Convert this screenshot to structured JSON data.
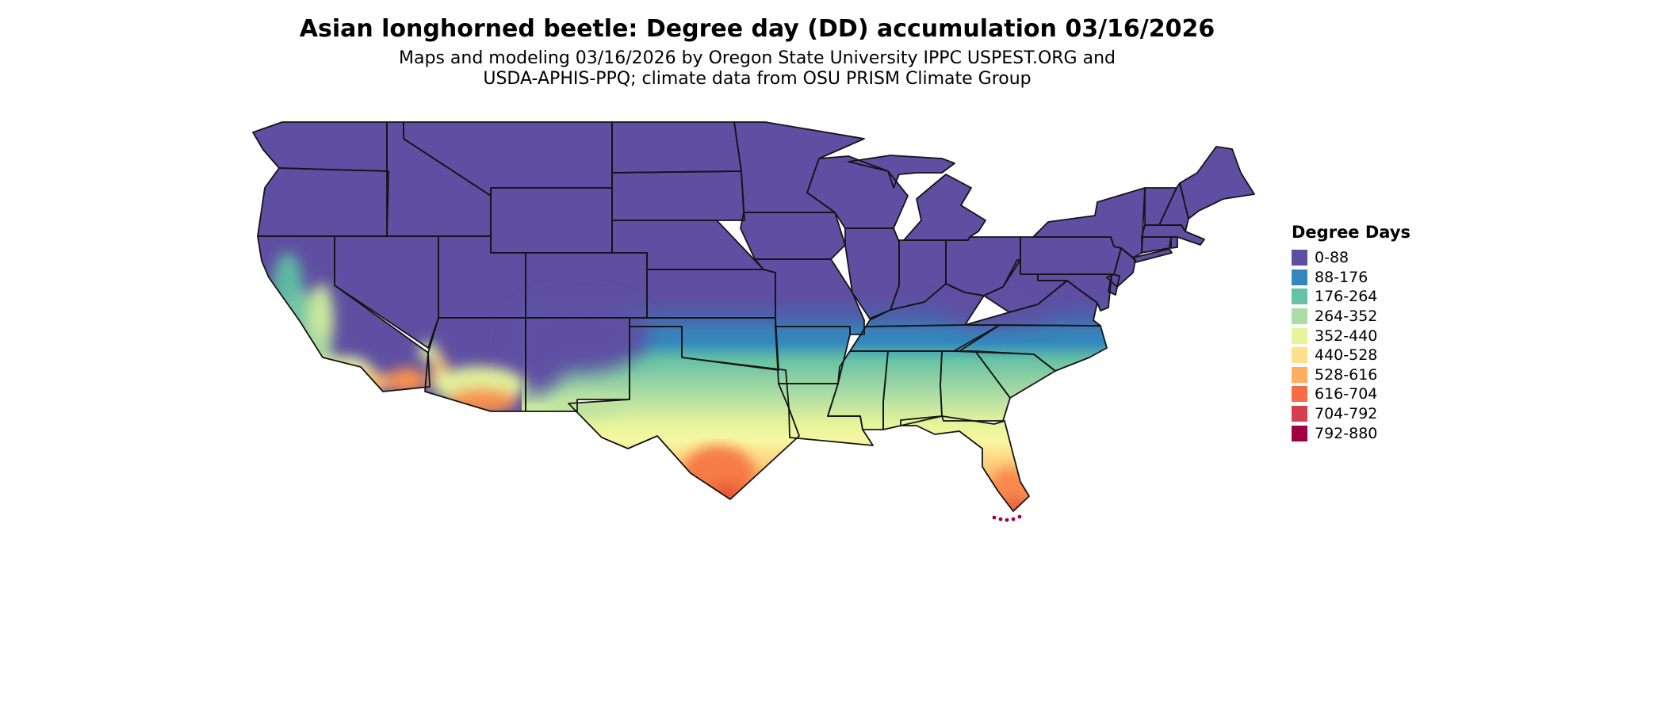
{
  "header": {
    "title": "Asian longhorned beetle: Degree day (DD) accumulation 03/16/2026",
    "subtitle_line1": "Maps and modeling 03/16/2026 by Oregon State University IPPC USPEST.ORG and",
    "subtitle_line2": "USDA-APHIS-PPQ; climate data from OSU PRISM Climate Group"
  },
  "legend": {
    "title": "Degree Days",
    "entries": [
      {
        "label": "0-88",
        "color": "#5e4fa2"
      },
      {
        "label": "88-176",
        "color": "#3288bd"
      },
      {
        "label": "176-264",
        "color": "#66c2a5"
      },
      {
        "label": "264-352",
        "color": "#abdda4"
      },
      {
        "label": "352-440",
        "color": "#e6f598"
      },
      {
        "label": "440-528",
        "color": "#fee08b"
      },
      {
        "label": "528-616",
        "color": "#fdae61"
      },
      {
        "label": "616-704",
        "color": "#f46d43"
      },
      {
        "label": "704-792",
        "color": "#d53e4f"
      },
      {
        "label": "792-880",
        "color": "#9e0142"
      }
    ]
  },
  "map": {
    "region": "Contiguous United States"
  },
  "chart_data": {
    "type": "heatmap",
    "title": "Asian longhorned beetle: Degree day (DD) accumulation 03/16/2026",
    "date_shown": "03/16/2026",
    "legend_title": "Degree Days",
    "unit": "degree days (DD)",
    "classes": [
      {
        "label": "0-88",
        "min": 0,
        "max": 88,
        "color": "#5e4fa2"
      },
      {
        "label": "88-176",
        "min": 88,
        "max": 176,
        "color": "#3288bd"
      },
      {
        "label": "176-264",
        "min": 176,
        "max": 264,
        "color": "#66c2a5"
      },
      {
        "label": "264-352",
        "min": 264,
        "max": 352,
        "color": "#abdda4"
      },
      {
        "label": "352-440",
        "min": 352,
        "max": 440,
        "color": "#e6f598"
      },
      {
        "label": "440-528",
        "min": 440,
        "max": 528,
        "color": "#fee08b"
      },
      {
        "label": "528-616",
        "min": 528,
        "max": 616,
        "color": "#fdae61"
      },
      {
        "label": "616-704",
        "min": 616,
        "max": 704,
        "color": "#f46d43"
      },
      {
        "label": "704-792",
        "min": 704,
        "max": 792,
        "color": "#d53e4f"
      },
      {
        "label": "792-880",
        "min": 792,
        "max": 880,
        "color": "#9e0142"
      }
    ],
    "pattern": "Accumulated degree days increase from north to south: 0-88 DD over the northern and central U.S. and New England; 88-264 DD across the mid-South, Tennessee and the Carolina coast; 264-528 DD over the Gulf states, central Texas, southern New Mexico and coastal/central California; 528-792 DD in south Texas, southern Arizona deserts and peninsular Florida; maxima of 704-880 DD at the southern tip of Texas and the Florida Keys."
  }
}
